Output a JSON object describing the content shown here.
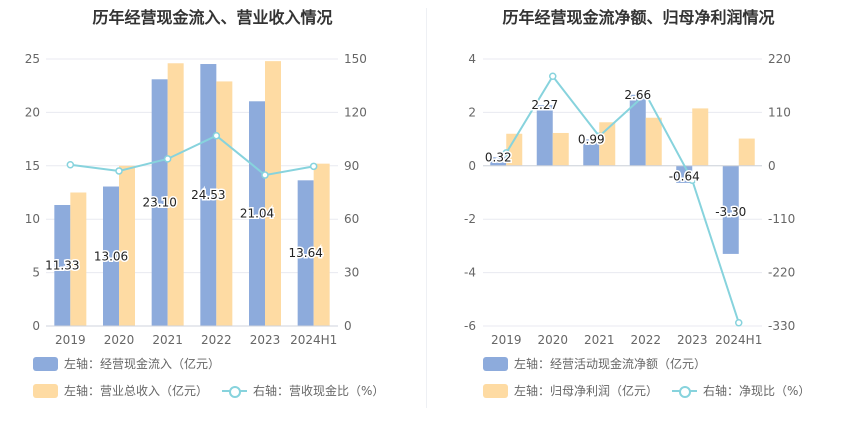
{
  "colors": {
    "bar_primary": "#8dabdc",
    "bar_secondary": "#fedba3",
    "line": "#87d3dd",
    "axis_text": "#666666",
    "grid": "#e8eaf0",
    "label_text": "#222222"
  },
  "chart_data": [
    {
      "type": "bar",
      "title": "历年经营现金流入、营业收入情况",
      "categories": [
        "2019",
        "2020",
        "2021",
        "2022",
        "2023",
        "2024H1"
      ],
      "left_axis": {
        "ticks": [
          "0",
          "5",
          "10",
          "15",
          "20",
          "25"
        ],
        "ylim": [
          0,
          25
        ]
      },
      "right_axis": {
        "ticks": [
          "0",
          "30",
          "60",
          "90",
          "120",
          "150"
        ],
        "ylim": [
          0,
          150
        ]
      },
      "series": [
        {
          "name": "左轴：经营现金流入（亿元）",
          "kind": "bar",
          "axis": "left",
          "values": [
            11.33,
            13.06,
            23.1,
            24.53,
            21.04,
            13.64
          ],
          "labels": [
            "11.33",
            "13.06",
            "23.10",
            "24.53",
            "21.04",
            "13.64"
          ]
        },
        {
          "name": "左轴：营业总收入（亿元）",
          "kind": "bar",
          "axis": "left",
          "values": [
            12.5,
            15.0,
            24.6,
            22.9,
            24.8,
            15.2
          ]
        },
        {
          "name": "右轴：营收现金比（%）",
          "kind": "line",
          "axis": "right",
          "values": [
            90.6,
            87.1,
            93.9,
            106.9,
            84.8,
            89.7
          ]
        }
      ],
      "legend": "bottom-left",
      "grid": true
    },
    {
      "type": "bar",
      "title": "历年经营现金流净额、归母净利润情况",
      "categories": [
        "2019",
        "2020",
        "2021",
        "2022",
        "2023",
        "2024H1"
      ],
      "left_axis": {
        "ticks": [
          "-6",
          "-4",
          "-2",
          "0",
          "2",
          "4"
        ],
        "ylim": [
          -6,
          4
        ]
      },
      "right_axis": {
        "ticks": [
          "-330",
          "-220",
          "-110",
          "0",
          "110",
          "220"
        ],
        "ylim": [
          -330,
          220
        ]
      },
      "series": [
        {
          "name": "左轴：经营活动现金流净额（亿元）",
          "kind": "bar",
          "axis": "left",
          "values": [
            0.32,
            2.27,
            0.99,
            2.66,
            -0.64,
            -3.3
          ],
          "labels": [
            "0.32",
            "2.27",
            "0.99",
            "2.66",
            "-0.64",
            "-3.30"
          ]
        },
        {
          "name": "左轴：归母净利润（亿元）",
          "kind": "bar",
          "axis": "left",
          "values": [
            1.2,
            1.23,
            1.63,
            1.8,
            2.15,
            1.02
          ]
        },
        {
          "name": "右轴：净现比（%）",
          "kind": "line",
          "axis": "right",
          "values": [
            26.5,
            184.5,
            60.9,
            147.8,
            -29.8,
            -323.3
          ]
        }
      ],
      "legend": "bottom-left",
      "grid": true
    }
  ]
}
